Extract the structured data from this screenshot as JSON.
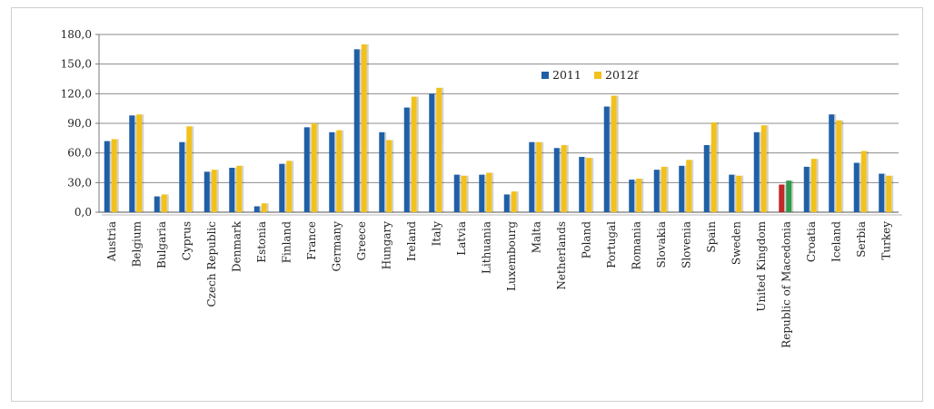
{
  "chart_data": {
    "type": "bar",
    "title": "",
    "xlabel": "",
    "ylabel": "",
    "ylim": [
      0,
      180
    ],
    "y_ticks": [
      "0,0",
      "30,0",
      "60,0",
      "90,0",
      "120,0",
      "150,0",
      "180,0"
    ],
    "grid": true,
    "legend_position": "top-right",
    "categories": [
      "Austria",
      "Belgium",
      "Bulgaria",
      "Cyprus",
      "Czech Republic",
      "Denmark",
      "Estonia",
      "Finland",
      "France",
      "Germany",
      "Greece",
      "Hungary",
      "Ireland",
      "Italy",
      "Latvia",
      "Lithuania",
      "Luxembourg",
      "Malta",
      "Netherlands",
      "Poland",
      "Portugal",
      "Romania",
      "Slovakia",
      "Slovenia",
      "Spain",
      "Sweden",
      "United Kingdom",
      "Republic of Macedonia",
      "Croatia",
      "Iceland",
      "Serbia",
      "Turkey"
    ],
    "series": [
      {
        "name": "2011",
        "color": "#1f5fa6",
        "values": [
          72,
          98,
          16,
          71,
          41,
          45,
          6,
          49,
          86,
          81,
          165,
          81,
          106,
          120,
          38,
          38,
          18,
          71,
          65,
          56,
          107,
          33,
          43,
          47,
          68,
          38,
          81,
          28,
          46,
          99,
          50,
          39
        ]
      },
      {
        "name": "2012f",
        "color": "#f2c11c",
        "values": [
          74,
          99,
          18,
          87,
          43,
          47,
          9,
          52,
          90,
          83,
          170,
          73,
          117,
          126,
          37,
          40,
          21,
          71,
          68,
          55,
          118,
          34,
          46,
          53,
          91,
          37,
          88,
          32,
          54,
          93,
          62,
          37
        ]
      }
    ],
    "highlight": {
      "category": "Republic of Macedonia",
      "colors": [
        "#c0282a",
        "#2f9a4a"
      ]
    }
  }
}
